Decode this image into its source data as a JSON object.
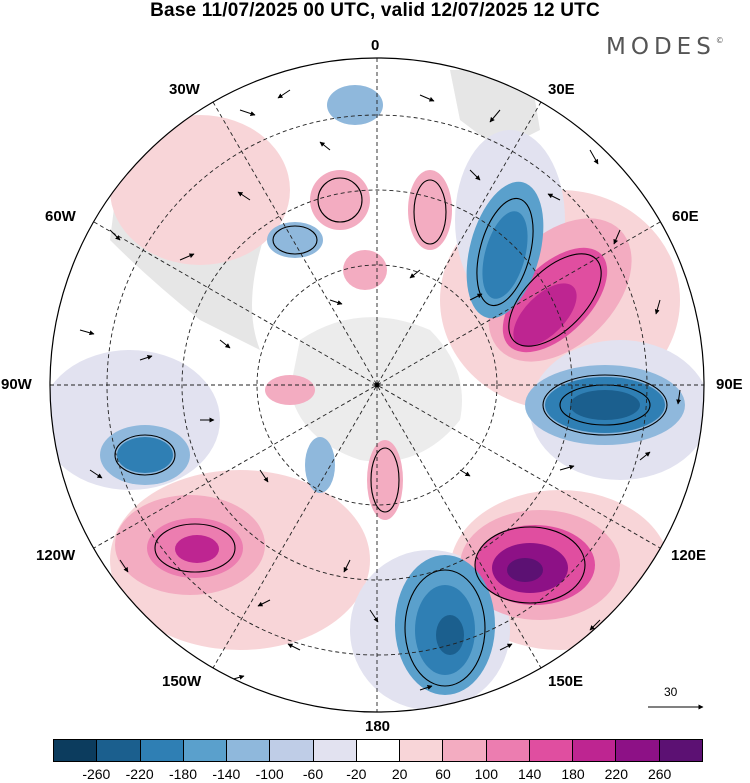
{
  "title": "Base 11/07/2025 00 UTC, valid 12/07/2025 12 UTC",
  "brand": "MODES",
  "brand_mark": "©",
  "map_labels": {
    "top": "0",
    "lon30w": "30W",
    "lon30e": "30E",
    "lon60w": "60W",
    "lon60e": "60E",
    "lon90w": "90W",
    "lon90e": "90E",
    "lon120w": "120W",
    "lon120e": "120E",
    "lon150w": "150W",
    "lon150e": "150E",
    "bottom": "180"
  },
  "reference_vector": "30",
  "colorbar": {
    "colors": [
      "#0c3c5e",
      "#1b5f8e",
      "#2f7fb4",
      "#5aa0cc",
      "#8fb8dc",
      "#bfcde7",
      "#e2e2f0",
      "#ffffff",
      "#f8d5d8",
      "#f3acc1",
      "#ec7db0",
      "#e04ea0",
      "#be2591",
      "#8d1186",
      "#5c1173"
    ],
    "ticks": [
      "-260",
      "-220",
      "-180",
      "-140",
      "-100",
      "-60",
      "-20",
      "20",
      "60",
      "100",
      "140",
      "180",
      "220",
      "260"
    ]
  }
}
